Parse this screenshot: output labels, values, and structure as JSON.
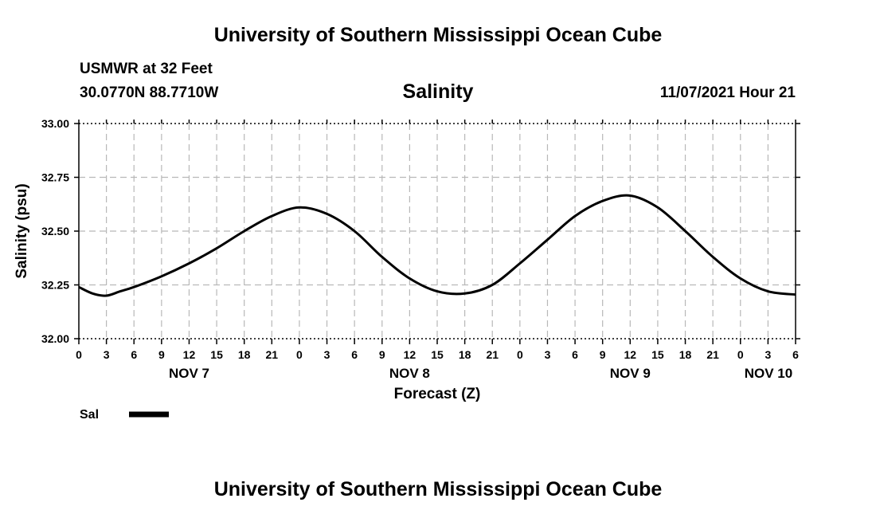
{
  "header": {
    "title": "University of Southern Mississippi Ocean Cube",
    "station": "USMWR at 32 Feet",
    "coordinates": "30.0770N  88.7710W",
    "date": "11/07/2021 Hour 21"
  },
  "footer": {
    "title": "University of Southern Mississippi Ocean Cube"
  },
  "chart_data": {
    "type": "line",
    "title": "Salinity",
    "xlabel": "Forecast (Z)",
    "ylabel": "Salinity (psu)",
    "ylim": [
      32.0,
      33.0
    ],
    "yticks": [
      "32.00",
      "32.25",
      "32.50",
      "32.75",
      "33.00"
    ],
    "xlim": [
      0,
      78
    ],
    "x_units": "hours from Nov 7 00Z",
    "xtick_labels": [
      "0",
      "3",
      "6",
      "9",
      "12",
      "15",
      "18",
      "21",
      "0",
      "3",
      "6",
      "9",
      "12",
      "15",
      "18",
      "21",
      "0",
      "3",
      "6",
      "9",
      "12",
      "15",
      "18",
      "21",
      "0",
      "3",
      "6"
    ],
    "day_labels": [
      {
        "label": "NOV 7",
        "x": 12
      },
      {
        "label": "NOV 8",
        "x": 36
      },
      {
        "label": "NOV 9",
        "x": 60
      },
      {
        "label": "NOV 10",
        "x": 78
      }
    ],
    "grid": true,
    "legend": {
      "position": "bottom-left",
      "entries": [
        {
          "name": "Sal"
        }
      ]
    },
    "series": [
      {
        "name": "Sal",
        "color": "#000000",
        "x": [
          0,
          1.5,
          3,
          4.5,
          6,
          9,
          12,
          15,
          18,
          21,
          24,
          27,
          30,
          33,
          36,
          39,
          42,
          45,
          48,
          51,
          54,
          57,
          60,
          63,
          66,
          69,
          72,
          75,
          78
        ],
        "y": [
          32.24,
          32.21,
          32.2,
          32.22,
          32.24,
          32.29,
          32.35,
          32.42,
          32.5,
          32.57,
          32.61,
          32.58,
          32.5,
          32.38,
          32.28,
          32.22,
          32.21,
          32.25,
          32.35,
          32.46,
          32.57,
          32.64,
          32.665,
          32.61,
          32.5,
          32.38,
          32.28,
          32.22,
          32.205
        ]
      }
    ]
  }
}
